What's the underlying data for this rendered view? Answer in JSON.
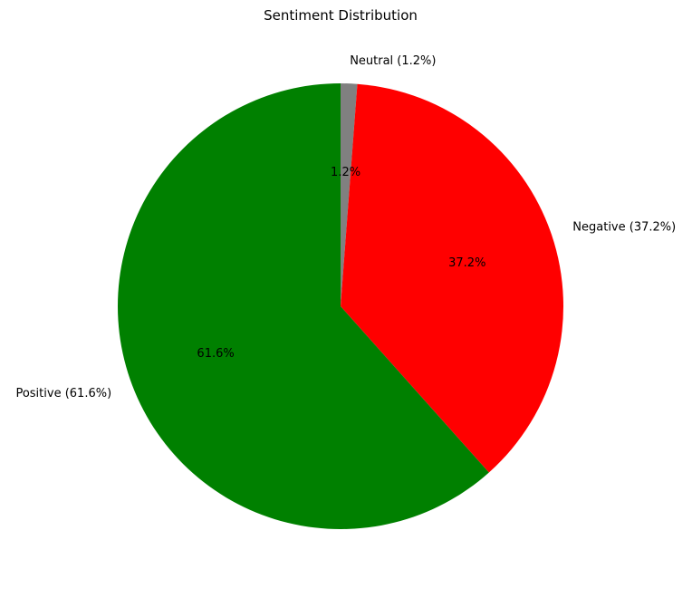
{
  "chart_data": {
    "type": "pie",
    "title": "Sentiment Distribution",
    "start_angle_deg": 90,
    "direction": "clockwise",
    "slices": [
      {
        "name": "Neutral",
        "label": "Neutral (1.2%)",
        "value": 1.2,
        "pct_label": "1.2%",
        "color": "#808080"
      },
      {
        "name": "Negative",
        "label": "Negative (37.2%)",
        "value": 37.2,
        "pct_label": "37.2%",
        "color": "#ff0000"
      },
      {
        "name": "Positive",
        "label": "Positive (61.6%)",
        "value": 61.6,
        "pct_label": "61.6%",
        "color": "#008000"
      }
    ]
  }
}
